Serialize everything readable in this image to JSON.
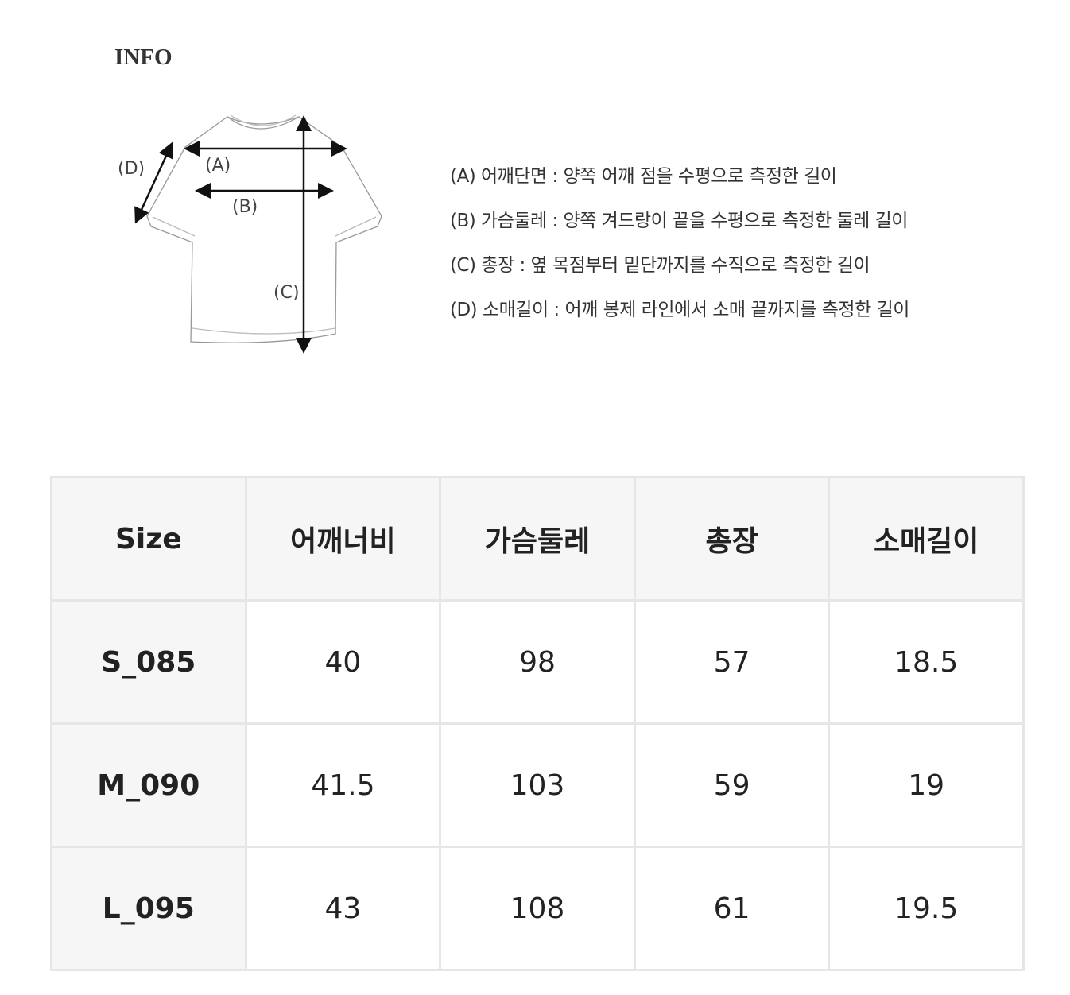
{
  "info": {
    "title": "INFO",
    "diagram_labels": {
      "a": "(A)",
      "b": "(B)",
      "c": "(C)",
      "d": "(D)"
    },
    "legend": [
      "(A) 어깨단면 : 양쪽 어깨 점을 수평으로 측정한 길이",
      "(B) 가슴둘레 : 양쪽 겨드랑이 끝을 수평으로 측정한 둘레 길이",
      "(C) 총장 : 옆 목점부터 밑단까지를 수직으로 측정한 길이",
      "(D) 소매길이 : 어깨 봉제 라인에서 소매 끝까지를 측정한 길이"
    ]
  },
  "table": {
    "headers": [
      "Size",
      "어깨너비",
      "가슴둘레",
      "총장",
      "소매길이"
    ],
    "rows": [
      [
        "S_085",
        "40",
        "98",
        "57",
        "18.5"
      ],
      [
        "M_090",
        "41.5",
        "103",
        "59",
        "19"
      ],
      [
        "L_095",
        "43",
        "108",
        "61",
        "19.5"
      ]
    ]
  }
}
